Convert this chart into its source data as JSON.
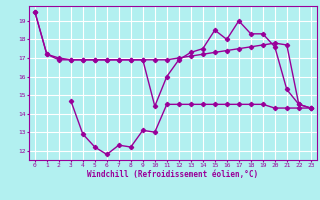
{
  "line1_x": [
    0,
    1,
    2,
    3,
    4,
    5,
    6,
    7,
    8,
    9,
    10,
    11,
    12,
    13,
    14,
    15,
    16,
    17,
    18,
    19,
    20,
    21,
    22,
    23
  ],
  "line1_y": [
    19.5,
    17.2,
    17.0,
    16.9,
    16.9,
    16.9,
    16.9,
    16.9,
    16.9,
    16.9,
    16.9,
    16.9,
    17.0,
    17.1,
    17.2,
    17.3,
    17.4,
    17.5,
    17.6,
    17.7,
    17.8,
    17.7,
    14.5,
    14.3
  ],
  "line2_x": [
    0,
    1,
    2,
    3,
    4,
    5,
    6,
    7,
    8,
    9,
    10,
    11,
    12,
    13,
    14,
    15,
    16,
    17,
    18,
    19,
    20,
    21,
    22,
    23
  ],
  "line2_y": [
    19.5,
    17.2,
    16.9,
    16.9,
    16.9,
    16.9,
    16.9,
    16.9,
    16.9,
    16.9,
    14.4,
    16.0,
    16.9,
    17.3,
    17.5,
    18.5,
    18.0,
    19.0,
    18.3,
    18.3,
    17.6,
    15.3,
    14.5,
    14.3
  ],
  "line3_x": [
    3,
    4,
    5,
    6,
    7,
    8,
    9,
    10,
    11,
    12,
    13,
    14,
    15,
    16,
    17,
    18,
    19,
    20,
    21,
    22,
    23
  ],
  "line3_y": [
    14.7,
    12.9,
    12.2,
    11.8,
    12.3,
    12.2,
    13.1,
    13.0,
    14.5,
    14.5,
    14.5,
    14.5,
    14.5,
    14.5,
    14.5,
    14.5,
    14.5,
    14.3,
    14.3,
    14.3,
    14.3
  ],
  "line_color": "#990099",
  "bg_color": "#b2f0f0",
  "grid_color": "#ffffff",
  "xlim": [
    -0.5,
    23.5
  ],
  "ylim": [
    11.5,
    19.8
  ],
  "yticks": [
    12,
    13,
    14,
    15,
    16,
    17,
    18,
    19
  ],
  "xticks": [
    0,
    1,
    2,
    3,
    4,
    5,
    6,
    7,
    8,
    9,
    10,
    11,
    12,
    13,
    14,
    15,
    16,
    17,
    18,
    19,
    20,
    21,
    22,
    23
  ],
  "xlabel": "Windchill (Refroidissement éolien,°C)",
  "marker": "D",
  "markersize": 2.2,
  "linewidth": 1.0
}
